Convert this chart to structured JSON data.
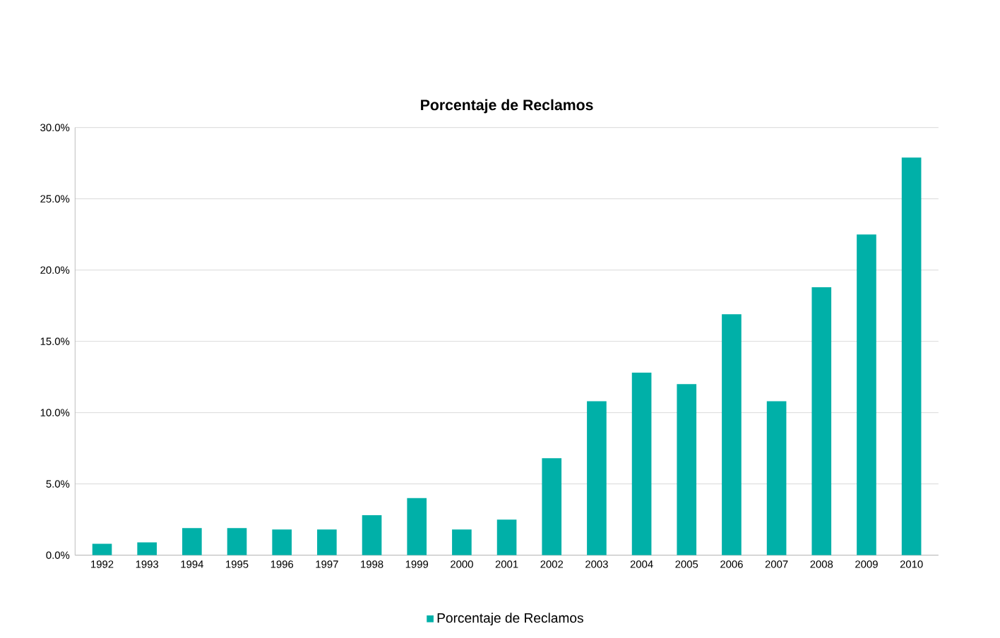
{
  "chart_data": {
    "type": "bar",
    "title": "Porcentaje de Reclamos",
    "categories": [
      "1992",
      "1993",
      "1994",
      "1995",
      "1996",
      "1997",
      "1998",
      "1999",
      "2000",
      "2001",
      "2002",
      "2003",
      "2004",
      "2005",
      "2006",
      "2007",
      "2008",
      "2009",
      "2010"
    ],
    "series": [
      {
        "name": "Porcentaje de Reclamos",
        "color": "#00b0a8",
        "values": [
          0.8,
          0.9,
          1.9,
          1.9,
          1.8,
          1.8,
          2.8,
          4.0,
          1.8,
          2.5,
          6.8,
          10.8,
          12.8,
          12.0,
          16.9,
          10.8,
          18.8,
          22.5,
          27.9
        ]
      }
    ],
    "ylim": [
      0,
      30
    ],
    "yticks": [
      {
        "value": 0,
        "label": "0.0%"
      },
      {
        "value": 5,
        "label": "5.0%"
      },
      {
        "value": 10,
        "label": "10.0%"
      },
      {
        "value": 15,
        "label": "15.0%"
      },
      {
        "value": 20,
        "label": "20.0%"
      },
      {
        "value": 25,
        "label": "25.0%"
      },
      {
        "value": 30,
        "label": "30.0%"
      }
    ],
    "grid": "y",
    "legend": "bottom"
  }
}
